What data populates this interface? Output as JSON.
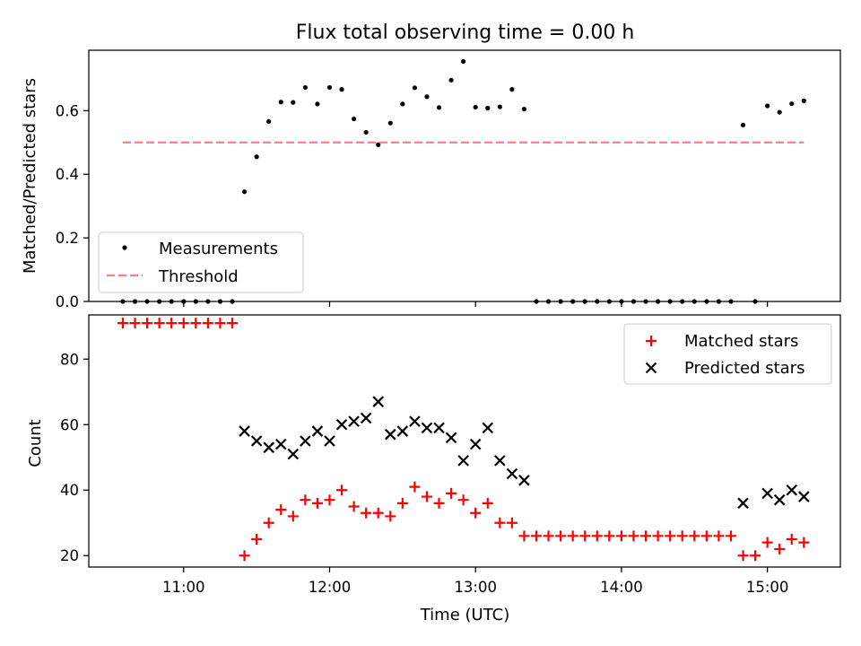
{
  "chart_data": [
    {
      "type": "scatter",
      "title": "Flux total observing time = 0.00 h",
      "ylabel": "Matched/Predicted stars",
      "xlim": [
        "10:21",
        "15:30"
      ],
      "ylim": [
        0,
        0.79
      ],
      "yticks": [
        "0.0",
        "0.2",
        "0.4",
        "0.6"
      ],
      "legend_position": "lower-left",
      "series": [
        {
          "name": "Measurements",
          "marker": "dot",
          "color": "#000000",
          "points": [
            [
              "10:35",
              0
            ],
            [
              "10:40",
              0
            ],
            [
              "10:45",
              0
            ],
            [
              "10:50",
              0
            ],
            [
              "10:55",
              0
            ],
            [
              "11:00",
              0
            ],
            [
              "11:05",
              0
            ],
            [
              "11:10",
              0
            ],
            [
              "11:15",
              0
            ],
            [
              "11:20",
              0
            ],
            [
              "11:25",
              0.345
            ],
            [
              "11:30",
              0.455
            ],
            [
              "11:35",
              0.566
            ],
            [
              "11:40",
              0.627
            ],
            [
              "11:45",
              0.626
            ],
            [
              "11:50",
              0.673
            ],
            [
              "11:55",
              0.621
            ],
            [
              "12:00",
              0.673
            ],
            [
              "12:05",
              0.667
            ],
            [
              "12:10",
              0.574
            ],
            [
              "12:15",
              0.532
            ],
            [
              "12:20",
              0.493
            ],
            [
              "12:25",
              0.561
            ],
            [
              "12:30",
              0.621
            ],
            [
              "12:35",
              0.672
            ],
            [
              "12:40",
              0.644
            ],
            [
              "12:45",
              0.61
            ],
            [
              "12:50",
              0.696
            ],
            [
              "12:55",
              0.755
            ],
            [
              "13:00",
              0.611
            ],
            [
              "13:05",
              0.608
            ],
            [
              "13:10",
              0.612
            ],
            [
              "13:15",
              0.667
            ],
            [
              "13:20",
              0.605
            ],
            [
              "13:25",
              0
            ],
            [
              "13:30",
              0
            ],
            [
              "13:35",
              0
            ],
            [
              "13:40",
              0
            ],
            [
              "13:45",
              0
            ],
            [
              "13:50",
              0
            ],
            [
              "13:55",
              0
            ],
            [
              "14:00",
              0
            ],
            [
              "14:05",
              0
            ],
            [
              "14:10",
              0
            ],
            [
              "14:15",
              0
            ],
            [
              "14:20",
              0
            ],
            [
              "14:25",
              0
            ],
            [
              "14:30",
              0
            ],
            [
              "14:35",
              0
            ],
            [
              "14:40",
              0
            ],
            [
              "14:45",
              0
            ],
            [
              "14:50",
              0.555
            ],
            [
              "14:55",
              0
            ],
            [
              "15:00",
              0.615
            ],
            [
              "15:05",
              0.595
            ],
            [
              "15:10",
              0.622
            ],
            [
              "15:15",
              0.631
            ]
          ]
        },
        {
          "name": "Threshold",
          "type": "line",
          "style": "dashed",
          "color": "#ff7f7f",
          "points": [
            [
              "10:35",
              0.5
            ],
            [
              "15:15",
              0.5
            ]
          ]
        }
      ]
    },
    {
      "type": "scatter",
      "xlabel": "Time (UTC)",
      "ylabel": "Count",
      "xlim": [
        "10:21",
        "15:30"
      ],
      "ylim": [
        16.5,
        93.5
      ],
      "xticks": [
        "11:00",
        "12:00",
        "13:00",
        "14:00",
        "15:00"
      ],
      "yticks": [
        "20",
        "40",
        "60",
        "80"
      ],
      "legend_position": "top-right",
      "series": [
        {
          "name": "Matched stars",
          "marker": "plus",
          "color": "#ff0000",
          "points": [
            [
              "10:35",
              91
            ],
            [
              "10:40",
              91
            ],
            [
              "10:45",
              91
            ],
            [
              "10:50",
              91
            ],
            [
              "10:55",
              91
            ],
            [
              "11:00",
              91
            ],
            [
              "11:05",
              91
            ],
            [
              "11:10",
              91
            ],
            [
              "11:15",
              91
            ],
            [
              "11:20",
              91
            ],
            [
              "11:25",
              20
            ],
            [
              "11:30",
              25
            ],
            [
              "11:35",
              30
            ],
            [
              "11:40",
              34
            ],
            [
              "11:45",
              32
            ],
            [
              "11:50",
              37
            ],
            [
              "11:55",
              36
            ],
            [
              "12:00",
              37
            ],
            [
              "12:05",
              40
            ],
            [
              "12:10",
              35
            ],
            [
              "12:15",
              33
            ],
            [
              "12:20",
              33
            ],
            [
              "12:25",
              32
            ],
            [
              "12:30",
              36
            ],
            [
              "12:35",
              41
            ],
            [
              "12:40",
              38
            ],
            [
              "12:45",
              36
            ],
            [
              "12:50",
              39
            ],
            [
              "12:55",
              37
            ],
            [
              "13:00",
              33
            ],
            [
              "13:05",
              36
            ],
            [
              "13:10",
              30
            ],
            [
              "13:15",
              30
            ],
            [
              "13:20",
              26
            ],
            [
              "13:25",
              26
            ],
            [
              "13:30",
              26
            ],
            [
              "13:35",
              26
            ],
            [
              "13:40",
              26
            ],
            [
              "13:45",
              26
            ],
            [
              "13:50",
              26
            ],
            [
              "13:55",
              26
            ],
            [
              "14:00",
              26
            ],
            [
              "14:05",
              26
            ],
            [
              "14:10",
              26
            ],
            [
              "14:15",
              26
            ],
            [
              "14:20",
              26
            ],
            [
              "14:25",
              26
            ],
            [
              "14:30",
              26
            ],
            [
              "14:35",
              26
            ],
            [
              "14:40",
              26
            ],
            [
              "14:45",
              26
            ],
            [
              "14:50",
              20
            ],
            [
              "14:55",
              20
            ],
            [
              "15:00",
              24
            ],
            [
              "15:05",
              22
            ],
            [
              "15:10",
              25
            ],
            [
              "15:15",
              24
            ]
          ]
        },
        {
          "name": "Predicted stars",
          "marker": "x",
          "color": "#000000",
          "points": [
            [
              "11:25",
              58
            ],
            [
              "11:30",
              55
            ],
            [
              "11:35",
              53
            ],
            [
              "11:40",
              54
            ],
            [
              "11:45",
              51
            ],
            [
              "11:50",
              55
            ],
            [
              "11:55",
              58
            ],
            [
              "12:00",
              55
            ],
            [
              "12:05",
              60
            ],
            [
              "12:10",
              61
            ],
            [
              "12:15",
              62
            ],
            [
              "12:20",
              67
            ],
            [
              "12:25",
              57
            ],
            [
              "12:30",
              58
            ],
            [
              "12:35",
              61
            ],
            [
              "12:40",
              59
            ],
            [
              "12:45",
              59
            ],
            [
              "12:50",
              56
            ],
            [
              "12:55",
              49
            ],
            [
              "13:00",
              54
            ],
            [
              "13:05",
              59
            ],
            [
              "13:10",
              49
            ],
            [
              "13:15",
              45
            ],
            [
              "13:20",
              43
            ],
            [
              "14:50",
              36
            ],
            [
              "15:00",
              39
            ],
            [
              "15:05",
              37
            ],
            [
              "15:10",
              40
            ],
            [
              "15:15",
              38
            ]
          ]
        }
      ]
    }
  ]
}
